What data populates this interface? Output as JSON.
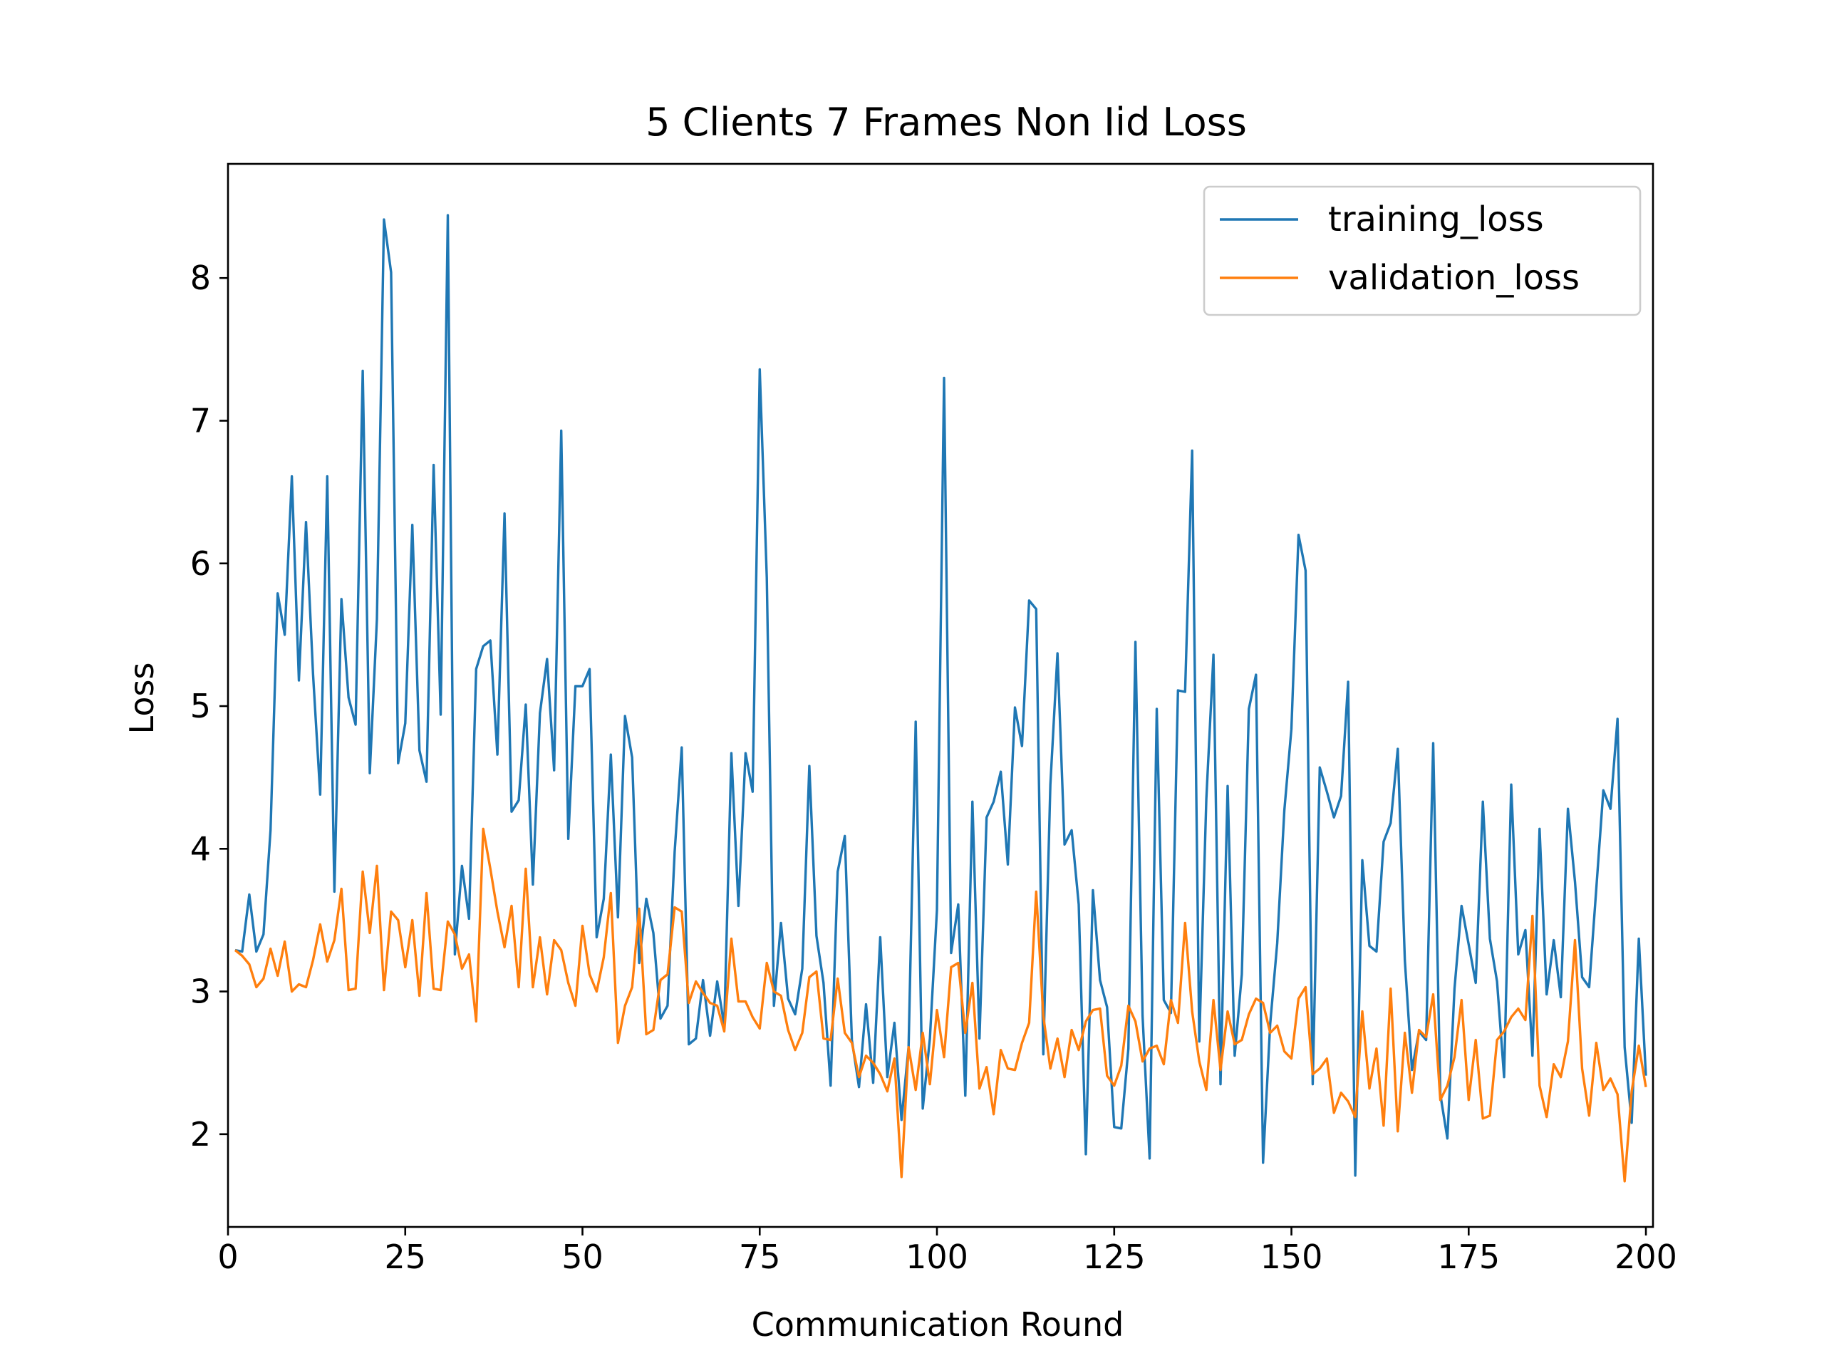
{
  "chart_data": {
    "type": "line",
    "title": "5 Clients 7 Frames Non Iid Loss",
    "xlabel": "Communication Round",
    "ylabel": "Loss",
    "xlim": [
      0,
      201
    ],
    "ylim": [
      1.35,
      8.8
    ],
    "x_start": 1,
    "x_step": 1,
    "xticks": [
      0,
      25,
      50,
      75,
      100,
      125,
      150,
      175,
      200
    ],
    "yticks": [
      2,
      3,
      4,
      5,
      6,
      7,
      8
    ],
    "grid": false,
    "legend_position": "top-right",
    "series": [
      {
        "name": "training_loss",
        "color": "#1f77b4",
        "values": [
          3.29,
          3.28,
          3.68,
          3.28,
          3.4,
          4.13,
          5.79,
          5.5,
          6.61,
          5.18,
          6.29,
          5.22,
          4.38,
          6.61,
          3.7,
          5.75,
          5.06,
          4.87,
          7.35,
          4.53,
          5.61,
          8.41,
          8.04,
          4.6,
          4.88,
          6.27,
          4.69,
          4.47,
          6.69,
          4.94,
          8.44,
          3.26,
          3.88,
          3.51,
          5.26,
          5.42,
          5.46,
          4.66,
          6.35,
          4.26,
          4.34,
          5.01,
          3.75,
          4.95,
          5.33,
          4.55,
          6.93,
          4.07,
          5.14,
          5.14,
          5.26,
          3.38,
          3.65,
          4.66,
          3.52,
          4.93,
          4.64,
          3.2,
          3.65,
          3.41,
          2.81,
          2.9,
          3.98,
          4.71,
          2.63,
          2.67,
          3.08,
          2.69,
          3.07,
          2.76,
          4.67,
          3.6,
          4.67,
          4.4,
          7.36,
          5.9,
          2.9,
          3.48,
          2.95,
          2.84,
          3.16,
          4.58,
          3.39,
          3.06,
          2.34,
          3.84,
          4.09,
          2.66,
          2.33,
          2.91,
          2.36,
          3.38,
          2.4,
          2.78,
          2.1,
          2.61,
          4.89,
          2.18,
          2.67,
          3.57,
          7.3,
          3.27,
          3.61,
          2.27,
          4.33,
          2.67,
          4.22,
          4.33,
          4.54,
          3.89,
          4.99,
          4.72,
          5.74,
          5.68,
          2.56,
          4.45,
          5.37,
          4.03,
          4.13,
          3.61,
          1.86,
          3.71,
          3.08,
          2.89,
          2.05,
          2.04,
          2.6,
          5.45,
          2.83,
          1.83,
          4.98,
          2.94,
          2.85,
          5.11,
          5.1,
          6.79,
          2.65,
          4.35,
          5.36,
          2.35,
          4.44,
          2.55,
          3.12,
          4.98,
          5.22,
          1.8,
          2.77,
          3.34,
          4.27,
          4.84,
          6.2,
          5.95,
          2.35,
          4.57,
          4.4,
          4.22,
          4.37,
          5.17,
          1.71,
          3.92,
          3.32,
          3.28,
          4.05,
          4.18,
          4.7,
          3.22,
          2.45,
          2.72,
          2.66,
          4.74,
          2.28,
          1.97,
          3.02,
          3.6,
          3.33,
          3.06,
          4.33,
          3.37,
          3.07,
          2.4,
          4.45,
          3.26,
          3.43,
          2.55,
          4.14,
          2.98,
          3.36,
          2.96,
          4.28,
          3.77,
          3.1,
          3.03,
          3.72,
          4.41,
          4.28,
          4.91,
          2.61,
          2.08,
          3.37,
          2.41
        ]
      },
      {
        "name": "validation_loss",
        "color": "#ff7f0e",
        "values": [
          3.29,
          3.25,
          3.19,
          3.03,
          3.09,
          3.3,
          3.11,
          3.35,
          3.0,
          3.05,
          3.03,
          3.22,
          3.47,
          3.21,
          3.36,
          3.72,
          3.01,
          3.02,
          3.84,
          3.41,
          3.88,
          3.01,
          3.56,
          3.5,
          3.17,
          3.5,
          2.97,
          3.69,
          3.02,
          3.01,
          3.49,
          3.4,
          3.16,
          3.26,
          2.79,
          4.14,
          3.86,
          3.56,
          3.31,
          3.6,
          3.03,
          3.86,
          3.03,
          3.38,
          2.98,
          3.36,
          3.29,
          3.06,
          2.9,
          3.46,
          3.12,
          3.0,
          3.24,
          3.69,
          2.64,
          2.9,
          3.03,
          3.58,
          2.7,
          2.73,
          3.08,
          3.12,
          3.59,
          3.56,
          2.92,
          3.07,
          2.99,
          2.92,
          2.9,
          2.72,
          3.37,
          2.93,
          2.93,
          2.82,
          2.74,
          3.2,
          3.0,
          2.97,
          2.73,
          2.59,
          2.71,
          3.1,
          3.14,
          2.67,
          2.66,
          3.09,
          2.71,
          2.64,
          2.4,
          2.55,
          2.5,
          2.42,
          2.3,
          2.53,
          1.7,
          2.61,
          2.31,
          2.71,
          2.35,
          2.87,
          2.54,
          3.17,
          3.2,
          2.71,
          3.06,
          2.32,
          2.47,
          2.14,
          2.59,
          2.46,
          2.45,
          2.64,
          2.78,
          3.7,
          2.83,
          2.46,
          2.67,
          2.4,
          2.73,
          2.59,
          2.79,
          2.87,
          2.88,
          2.41,
          2.34,
          2.48,
          2.9,
          2.79,
          2.51,
          2.6,
          2.62,
          2.49,
          2.94,
          2.78,
          3.48,
          2.86,
          2.51,
          2.31,
          2.94,
          2.45,
          2.86,
          2.63,
          2.66,
          2.84,
          2.95,
          2.92,
          2.71,
          2.76,
          2.58,
          2.53,
          2.95,
          3.03,
          2.42,
          2.46,
          2.53,
          2.15,
          2.29,
          2.23,
          2.12,
          2.86,
          2.32,
          2.6,
          2.06,
          3.02,
          2.02,
          2.71,
          2.29,
          2.73,
          2.68,
          2.98,
          2.24,
          2.34,
          2.54,
          2.94,
          2.24,
          2.66,
          2.11,
          2.13,
          2.66,
          2.72,
          2.82,
          2.88,
          2.8,
          3.53,
          2.34,
          2.12,
          2.49,
          2.4,
          2.65,
          3.36,
          2.46,
          2.13,
          2.64,
          2.31,
          2.39,
          2.28,
          1.67,
          2.3,
          2.62,
          2.33
        ]
      }
    ]
  }
}
